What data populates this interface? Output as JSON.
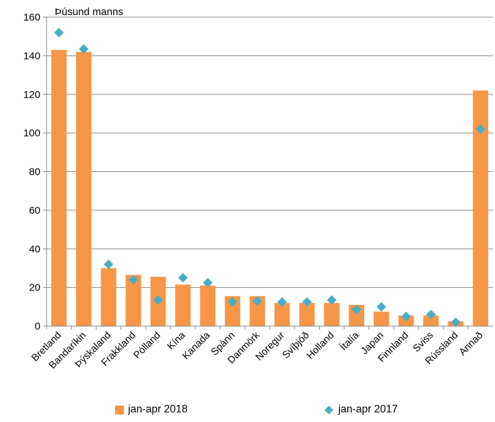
{
  "chart_data": {
    "type": "bar",
    "ylabel": "Þúsund manns",
    "ylim": [
      0,
      160
    ],
    "yticks": [
      "0",
      "20",
      "40",
      "60",
      "80",
      "100",
      "120",
      "140",
      "160"
    ],
    "categories": [
      "Bretland",
      "Bandaríkin",
      "Þýskaland",
      "Frakkland",
      "Pólland",
      "Kína",
      "Kanada",
      "Spánn",
      "Danmörk",
      "Noregur",
      "Svíþjóð",
      "Holland",
      "Ítalía",
      "Japan",
      "Finnland",
      "Sviss",
      "Rússland",
      "Annað"
    ],
    "series": [
      {
        "name": "jan-apr 2018",
        "kind": "bar",
        "color": "#F79646",
        "values": [
          143,
          142,
          30,
          26.5,
          25.5,
          21.5,
          21,
          15.5,
          15.5,
          12,
          12,
          12,
          11,
          7.5,
          5.5,
          5.5,
          2.5,
          122
        ]
      },
      {
        "name": "jan-apr 2017",
        "kind": "marker",
        "color": "#4BACC6",
        "values": [
          152,
          143.5,
          32,
          24,
          13.5,
          25,
          22.5,
          12.5,
          13,
          12.5,
          12.5,
          13.5,
          8.5,
          10,
          5,
          6,
          2,
          102
        ]
      }
    ],
    "grid": true,
    "legend_position": "bottom"
  }
}
